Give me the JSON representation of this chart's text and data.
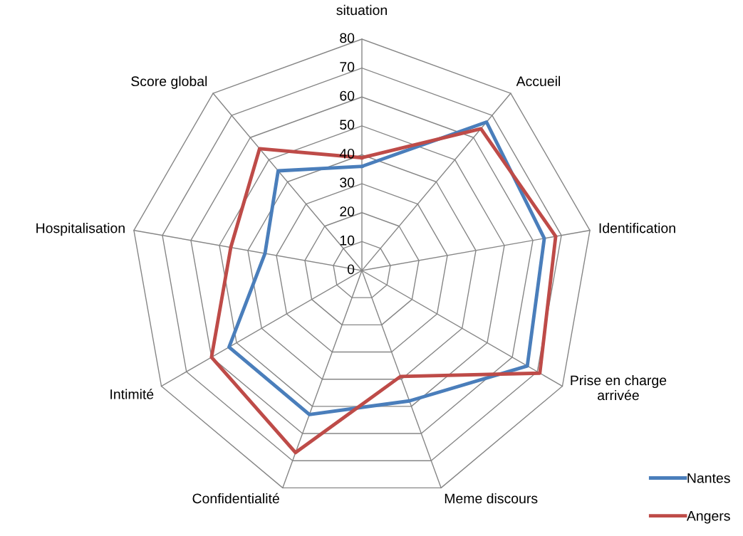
{
  "chart_data": {
    "type": "radar",
    "categories": [
      "situation",
      "Accueil",
      "Identification",
      "Prise en charge arrivée",
      "Meme discours",
      "Confidentialité",
      "Intimité",
      "Hospitalisation",
      "Score global"
    ],
    "series": [
      {
        "name": "Nantes",
        "color": "#4a7ebb",
        "values": [
          36,
          67,
          64,
          66,
          48,
          53,
          53,
          34,
          45
        ]
      },
      {
        "name": "Angers",
        "color": "#be4b48",
        "values": [
          39,
          64,
          68,
          71,
          39,
          67,
          60,
          46,
          55
        ]
      }
    ],
    "ylim": [
      0,
      80
    ],
    "yticks": [
      0,
      10,
      20,
      30,
      40,
      50,
      60,
      70,
      80
    ],
    "grid": true,
    "legend": "bottom right",
    "marker": "none",
    "line_style": "solid"
  }
}
